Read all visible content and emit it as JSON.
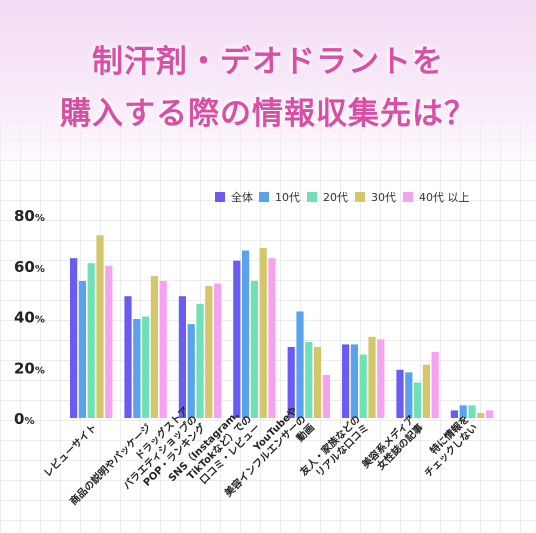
{
  "title": {
    "line1": "制汗剤・デオドラントを",
    "line2": "購入する際の情報収集先は？"
  },
  "chart_data": {
    "type": "bar",
    "ylim": [
      0,
      80
    ],
    "yticks": [
      0,
      20,
      40,
      60,
      80
    ],
    "ytick_unit": "%",
    "grid": true,
    "legend_position": "top-right",
    "categories": [
      [
        "レビューサイト"
      ],
      [
        "商品の説明やパッケージ"
      ],
      [
        "ドラッグストア",
        "バラエティショップの",
        "POP・ランキング"
      ],
      [
        "SNS（Instagram、",
        "TikTokなど）での",
        "口コミ・レビュー"
      ],
      [
        "YouTubeや",
        "美容インフルエンサーの",
        "動画"
      ],
      [
        "友人・家族などの",
        "リアルな口コミ"
      ],
      [
        "美容系メディア",
        "女性誌の記事"
      ],
      [
        "特に情報を",
        "チェックしない"
      ]
    ],
    "series": [
      {
        "name": "全体",
        "color": "#6a5cf0",
        "values": [
          63,
          48,
          48,
          62,
          28,
          29,
          19,
          3
        ]
      },
      {
        "name": "10代",
        "color": "#5aa2ee",
        "values": [
          54,
          39,
          37,
          66,
          42,
          29,
          18,
          5
        ]
      },
      {
        "name": "20代",
        "color": "#6fe0b8",
        "values": [
          61,
          40,
          45,
          54,
          30,
          25,
          14,
          5
        ]
      },
      {
        "name": "30代",
        "color": "#d3c76a",
        "values": [
          72,
          56,
          52,
          67,
          28,
          32,
          21,
          2
        ]
      },
      {
        "name": "40代 以上",
        "color": "#f5a3ee",
        "values": [
          60,
          54,
          53,
          63,
          17,
          31,
          26,
          3
        ]
      }
    ]
  }
}
